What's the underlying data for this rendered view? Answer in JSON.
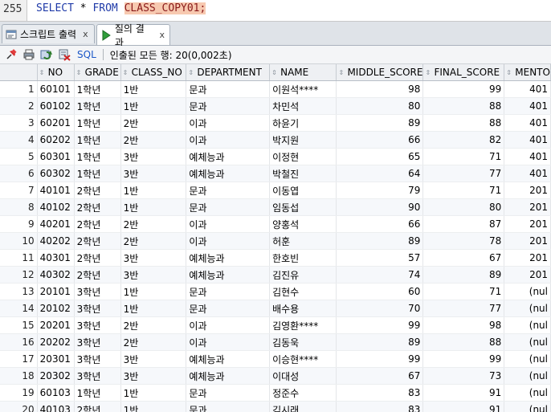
{
  "editor": {
    "line_number": "255",
    "kw_select": "SELECT",
    "star": "*",
    "kw_from": "FROM",
    "table_ref": "CLASS_COPY01;"
  },
  "tabs": [
    {
      "label": "스크립트 출력",
      "close": "x",
      "icon": "script-output-icon"
    },
    {
      "label": "질의 결과",
      "close": "x",
      "icon": "run-query-icon"
    }
  ],
  "toolbar": {
    "sql_label": "SQL",
    "status": "인출된 모든 행: 20(0,002초)"
  },
  "grid": {
    "columns": [
      "NO",
      "GRADE",
      "CLASS_NO",
      "DEPARTMENT",
      "NAME",
      "MIDDLE_SCORE",
      "FINAL_SCORE",
      "MENTO"
    ],
    "rows": [
      [
        "1",
        "60101",
        "1학년",
        "1반",
        "문과",
        "이원석****",
        "98",
        "99",
        "401"
      ],
      [
        "2",
        "60102",
        "1학년",
        "1반",
        "문과",
        "차민석",
        "80",
        "88",
        "401"
      ],
      [
        "3",
        "60201",
        "1학년",
        "2반",
        "이과",
        "하윤기",
        "89",
        "88",
        "401"
      ],
      [
        "4",
        "60202",
        "1학년",
        "2반",
        "이과",
        "박지원",
        "66",
        "82",
        "401"
      ],
      [
        "5",
        "60301",
        "1학년",
        "3반",
        "예체능과",
        "이정현",
        "65",
        "71",
        "401"
      ],
      [
        "6",
        "60302",
        "1학년",
        "3반",
        "예체능과",
        "박철진",
        "64",
        "77",
        "401"
      ],
      [
        "7",
        "40101",
        "2학년",
        "1반",
        "문과",
        "이동엽",
        "79",
        "71",
        "201"
      ],
      [
        "8",
        "40102",
        "2학년",
        "1반",
        "문과",
        "임동섭",
        "90",
        "80",
        "201"
      ],
      [
        "9",
        "40201",
        "2학년",
        "2반",
        "이과",
        "양홍석",
        "66",
        "87",
        "201"
      ],
      [
        "10",
        "40202",
        "2학년",
        "2반",
        "이과",
        "허훈",
        "89",
        "78",
        "201"
      ],
      [
        "11",
        "40301",
        "2학년",
        "3반",
        "예체능과",
        "한호빈",
        "57",
        "67",
        "201"
      ],
      [
        "12",
        "40302",
        "2학년",
        "3반",
        "예체능과",
        "김진유",
        "74",
        "89",
        "201"
      ],
      [
        "13",
        "20101",
        "3학년",
        "1반",
        "문과",
        "김현수",
        "60",
        "71",
        "(nul"
      ],
      [
        "14",
        "20102",
        "3학년",
        "1반",
        "문과",
        "배수용",
        "70",
        "77",
        "(nul"
      ],
      [
        "15",
        "20201",
        "3학년",
        "2반",
        "이과",
        "김영환****",
        "99",
        "98",
        "(nul"
      ],
      [
        "16",
        "20202",
        "3학년",
        "2반",
        "이과",
        "김동욱",
        "89",
        "88",
        "(nul"
      ],
      [
        "17",
        "20301",
        "3학년",
        "3반",
        "예체능과",
        "이승현****",
        "99",
        "99",
        "(nul"
      ],
      [
        "18",
        "20302",
        "3학년",
        "3반",
        "예체능과",
        "이대성",
        "67",
        "73",
        "(nul"
      ],
      [
        "19",
        "60103",
        "1학년",
        "1반",
        "문과",
        "정준수",
        "83",
        "91",
        "(nul"
      ],
      [
        "20",
        "40103",
        "2학년",
        "1반",
        "문과",
        "김시래",
        "83",
        "91",
        "(nul"
      ]
    ]
  }
}
